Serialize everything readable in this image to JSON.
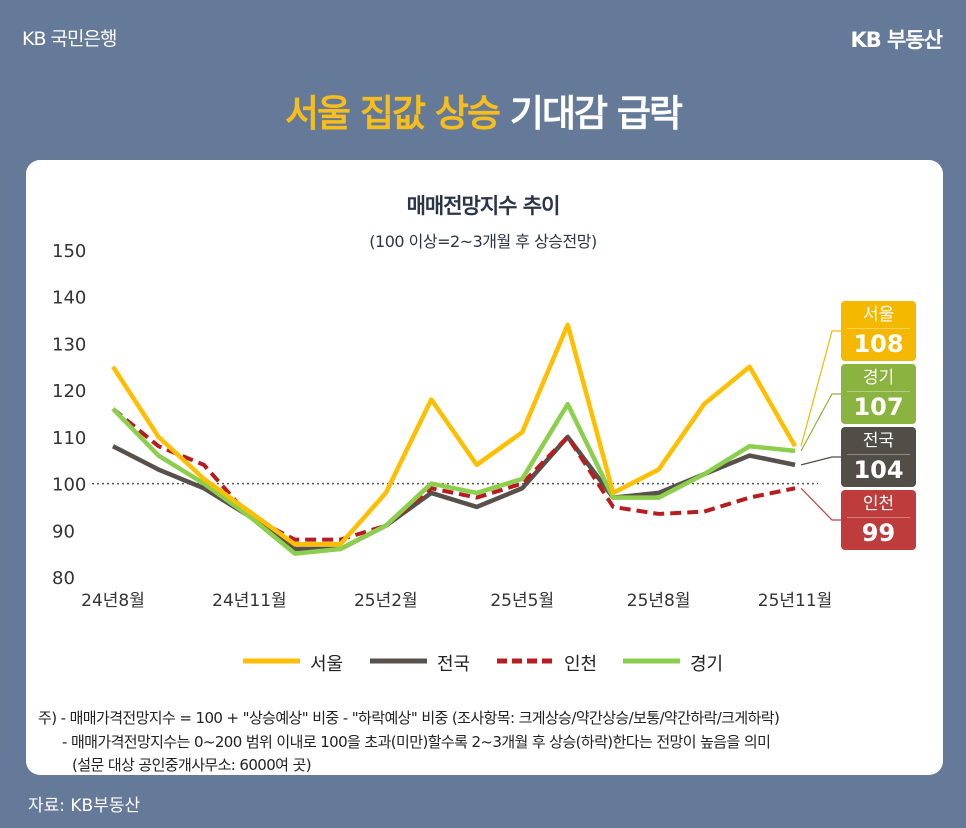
{
  "header": {
    "bank_logo": "KB 국민은행",
    "brand": "KB 부동산",
    "title_highlight": "서울 집값 상승",
    "title_rest": "기대감 급락"
  },
  "chart_data": {
    "type": "line",
    "title": "매매전망지수 추이",
    "subtitle": "(100 이상=2~3개월 후 상승전망)",
    "x": [
      "24년8월",
      "24년9월",
      "24년10월",
      "24년11월",
      "24년12월",
      "25년1월",
      "25년2월",
      "25년3월",
      "25년4월",
      "25년5월",
      "25년6월",
      "25년7월",
      "25년8월",
      "25년9월",
      "25년10월",
      "25년11월"
    ],
    "xtick_labels": {
      "0": "24년8월",
      "3": "24년11월",
      "6": "25년2월",
      "9": "25년5월",
      "12": "25년8월",
      "15": "25년11월"
    },
    "ylim": [
      80,
      150
    ],
    "yticks": [
      80,
      90,
      100,
      110,
      120,
      130,
      140,
      150
    ],
    "reference_line": 100,
    "series": [
      {
        "name": "서울",
        "color": "#ffbf00",
        "box_color": "#f5b800",
        "dashed": false,
        "last_label": "108",
        "values": [
          125,
          110,
          101,
          94,
          87,
          87,
          98,
          118,
          104,
          111,
          134,
          98,
          103,
          117,
          125,
          108
        ]
      },
      {
        "name": "전국",
        "color": "#58504a",
        "box_color": "#524d47",
        "dashed": false,
        "last_label": "104",
        "values": [
          108,
          103,
          99,
          93,
          86,
          86,
          91,
          98,
          95,
          99,
          110,
          97,
          98,
          102,
          106,
          104
        ]
      },
      {
        "name": "인천",
        "color": "#b81c20",
        "box_color": "#bf3c3c",
        "dashed": true,
        "last_label": "99",
        "values": [
          116,
          108,
          104,
          93,
          88,
          88,
          91,
          99,
          97,
          100,
          110,
          95,
          93.5,
          94,
          97,
          99
        ]
      },
      {
        "name": "경기",
        "color": "#8ccf4d",
        "box_color": "#8ab43f",
        "dashed": false,
        "last_label": "107",
        "values": [
          116,
          106,
          100,
          93,
          85,
          86,
          91,
          100,
          98,
          101,
          117,
          97,
          97,
          102,
          108,
          107
        ]
      }
    ],
    "box_order": [
      0,
      3,
      1,
      2
    ],
    "legend_position": "bottom"
  },
  "notes": [
    "주) - 매매가격전망지수 = 100 + \"상승예상\" 비중 - \"하락예상\" 비중 (조사항목: 크게상승/약간상승/보통/약간하락/크게하락)",
    "- 매매가격전망지수는 0~200 범위 이내로 100을 초과(미만)할수록 2~3개월 후 상승(하락)한다는 전망이 높음을 의미",
    "(설문 대상 공인중개사무소: 6000여 곳)"
  ],
  "source": "자료: KB부동산"
}
